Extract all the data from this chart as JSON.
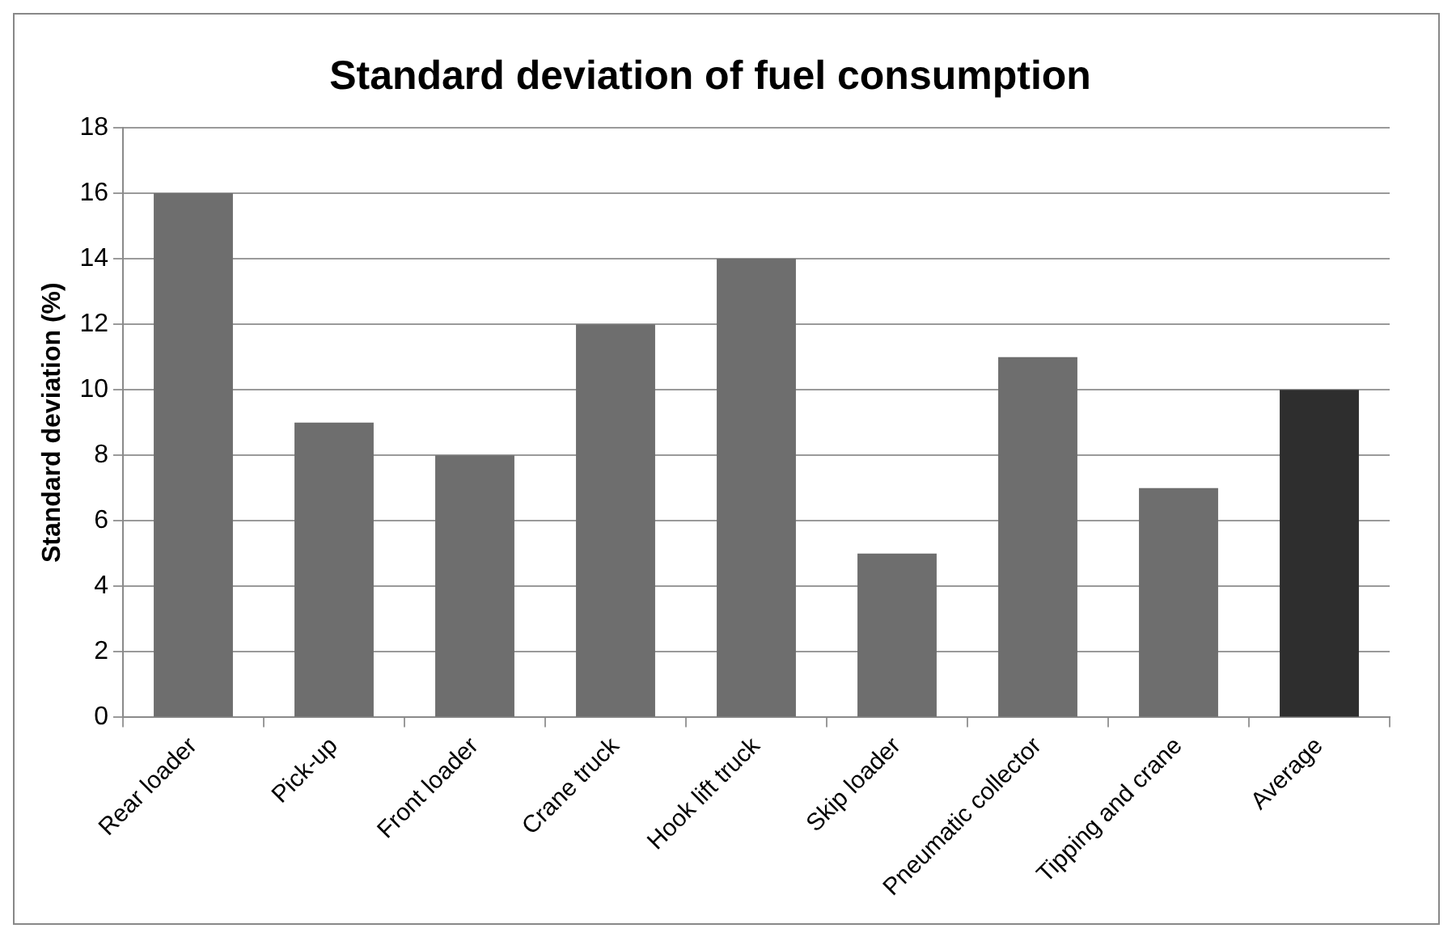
{
  "chart_data": {
    "type": "bar",
    "title": "Standard deviation of fuel consumption",
    "ylabel": "Standard deviation (%)",
    "categories": [
      "Rear loader",
      "Pick-up",
      "Front loader",
      "Crane truck",
      "Hook lift truck",
      "Skip loader",
      "Pneumatic collector",
      "Tipping and crane",
      "Average"
    ],
    "values": [
      16,
      9,
      8,
      12,
      14,
      5,
      11,
      7,
      10
    ],
    "colors": [
      "#6e6e6e",
      "#6e6e6e",
      "#6e6e6e",
      "#6e6e6e",
      "#6e6e6e",
      "#6e6e6e",
      "#6e6e6e",
      "#6e6e6e",
      "#2e2e2e"
    ],
    "ylim": [
      0,
      18
    ],
    "yticks": [
      0,
      2,
      4,
      6,
      8,
      10,
      12,
      14,
      16,
      18
    ],
    "grid": "y",
    "legend": false
  }
}
